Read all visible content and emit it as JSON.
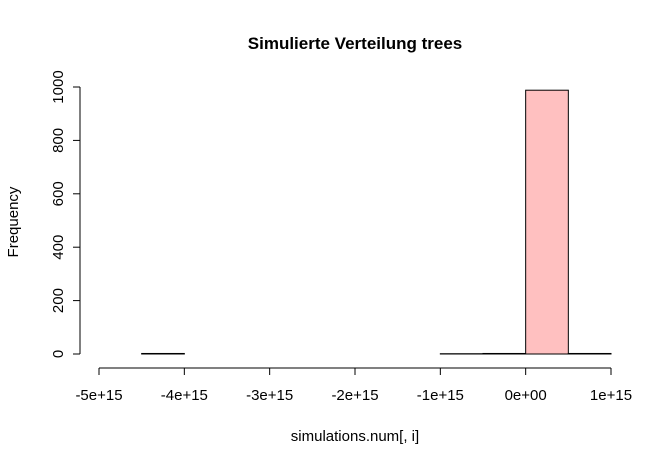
{
  "chart_data": {
    "type": "bar",
    "title": "Simulierte Verteilung trees",
    "xlabel": "simulations.num[, i]",
    "ylabel": "Frequency",
    "bin_edges": [
      -5000000000000000.0,
      -4500000000000000.0,
      -4000000000000000.0,
      -3500000000000000.0,
      -3000000000000000.0,
      -2500000000000000.0,
      -2000000000000000.0,
      -1500000000000000.0,
      -1000000000000000.0,
      -500000000000000.0,
      0,
      500000000000000.0,
      1000000000000000.0
    ],
    "values": [
      0,
      2,
      0,
      0,
      0,
      0,
      0,
      0,
      1,
      2,
      988,
      2,
      0
    ],
    "xlim": [
      -5000000000000000.0,
      1000000000000000.0
    ],
    "ylim": [
      0,
      1000
    ],
    "x_ticks": [
      -5000000000000000.0,
      -4000000000000000.0,
      -3000000000000000.0,
      -2000000000000000.0,
      -1000000000000000.0,
      0,
      1000000000000000.0
    ],
    "x_tick_labels": [
      "-5e+15",
      "-4e+15",
      "-3e+15",
      "-2e+15",
      "-1e+15",
      "0e+00",
      "1e+15"
    ],
    "y_ticks": [
      0,
      200,
      400,
      600,
      800,
      1000
    ],
    "y_tick_labels": [
      "0",
      "200",
      "400",
      "600",
      "800",
      "1000"
    ],
    "highlight_bin_index": 10,
    "bar_fill": "#ffc0c0",
    "bar_stroke": "#000000",
    "grid": false
  }
}
